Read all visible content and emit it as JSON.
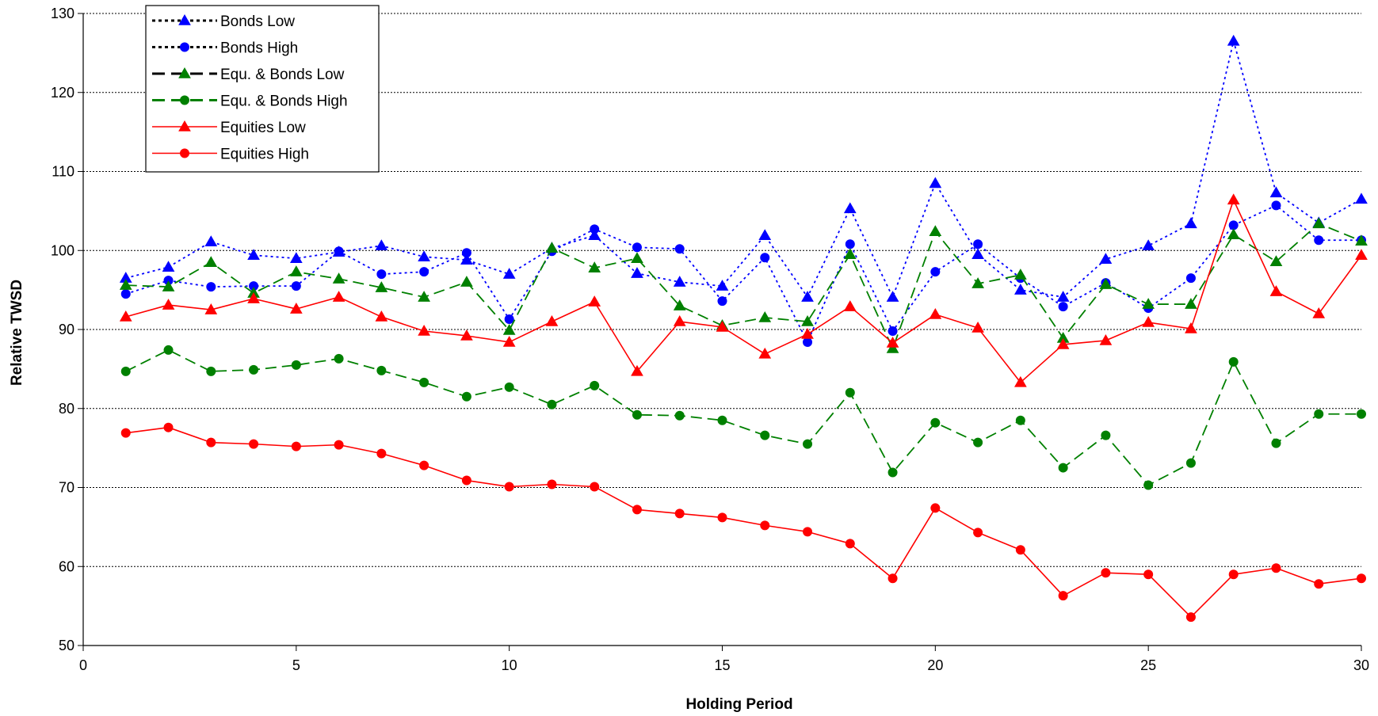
{
  "chart_data": {
    "type": "line",
    "title": "",
    "xlabel": "Holding Period",
    "ylabel": "Relative TWSD",
    "xlim": [
      0,
      30
    ],
    "ylim": [
      50,
      130
    ],
    "x_ticks": [
      "0",
      "5",
      "10",
      "15",
      "20",
      "25",
      "30"
    ],
    "y_ticks": [
      "50",
      "60",
      "70",
      "80",
      "90",
      "100",
      "110",
      "120",
      "130"
    ],
    "grid": "horizontal dotted",
    "legend_position": "top-left",
    "x": [
      1,
      2,
      3,
      4,
      5,
      6,
      7,
      8,
      9,
      10,
      11,
      12,
      13,
      14,
      15,
      16,
      17,
      18,
      19,
      20,
      21,
      22,
      23,
      24,
      25,
      26,
      27,
      28,
      29,
      30
    ],
    "series": [
      {
        "name": "Bonds Low",
        "color": "#0000ff",
        "marker": "triangle",
        "line_style": "dotted",
        "legend_line_color": "#000000",
        "values": [
          96.5,
          97.9,
          101.1,
          99.4,
          99.0,
          99.8,
          100.6,
          99.2,
          98.8,
          97.0,
          100.3,
          101.9,
          97.1,
          96.0,
          95.5,
          101.9,
          94.1,
          105.3,
          94.1,
          108.5,
          99.5,
          95.0,
          94.1,
          98.9,
          100.6,
          103.4,
          126.5,
          107.3,
          103.5,
          106.5
        ]
      },
      {
        "name": "Bonds High",
        "color": "#0000ff",
        "marker": "circle",
        "line_style": "dotted",
        "legend_line_color": "#000000",
        "values": [
          94.5,
          96.2,
          95.4,
          95.5,
          95.5,
          99.9,
          97.0,
          97.3,
          99.7,
          91.3,
          99.9,
          102.7,
          100.4,
          100.2,
          93.6,
          99.1,
          88.4,
          100.8,
          89.8,
          97.3,
          100.8,
          96.5,
          92.9,
          95.9,
          92.7,
          96.5,
          103.2,
          105.7,
          101.3,
          101.3
        ]
      },
      {
        "name": "Equ. & Bonds Low",
        "color": "#008000",
        "marker": "triangle",
        "line_style": "dashed",
        "legend_line_color": "#000000",
        "values": [
          95.6,
          95.4,
          98.5,
          94.6,
          97.3,
          96.4,
          95.3,
          94.1,
          96.0,
          89.9,
          100.3,
          97.8,
          99.0,
          93.0,
          90.5,
          91.5,
          91.0,
          99.5,
          87.6,
          102.4,
          95.8,
          96.9,
          88.9,
          95.7,
          93.2,
          93.2,
          102.0,
          98.6,
          103.4,
          101.2
        ]
      },
      {
        "name": "Equ. & Bonds High",
        "color": "#008000",
        "marker": "circle",
        "line_style": "dashed",
        "legend_line_color": "#008000",
        "values": [
          84.7,
          87.4,
          84.7,
          84.9,
          85.5,
          86.3,
          84.8,
          83.3,
          81.5,
          82.7,
          80.5,
          82.9,
          79.2,
          79.1,
          78.5,
          76.6,
          75.5,
          82.0,
          71.9,
          78.2,
          75.7,
          78.5,
          72.5,
          76.6,
          70.3,
          73.1,
          85.9,
          75.6,
          79.3,
          79.3
        ]
      },
      {
        "name": "Equities Low",
        "color": "#ff0000",
        "marker": "triangle",
        "line_style": "solid",
        "legend_line_color": "#ff0000",
        "values": [
          91.6,
          93.1,
          92.5,
          93.9,
          92.6,
          94.1,
          91.6,
          89.8,
          89.2,
          88.4,
          91.0,
          93.5,
          84.7,
          91.0,
          90.3,
          86.9,
          89.4,
          92.9,
          88.3,
          91.9,
          90.2,
          83.3,
          88.1,
          88.6,
          90.9,
          90.1,
          106.4,
          94.8,
          92.0,
          99.4
        ]
      },
      {
        "name": "Equities High",
        "color": "#ff0000",
        "marker": "circle",
        "line_style": "solid",
        "legend_line_color": "#ff0000",
        "values": [
          76.9,
          77.6,
          75.7,
          75.5,
          75.2,
          75.4,
          74.3,
          72.8,
          70.9,
          70.1,
          70.4,
          70.1,
          67.2,
          66.7,
          66.2,
          65.2,
          64.4,
          62.9,
          58.5,
          67.4,
          64.3,
          62.1,
          56.3,
          59.2,
          59.0,
          53.6,
          59.0,
          59.8,
          57.8,
          58.5
        ]
      }
    ]
  }
}
